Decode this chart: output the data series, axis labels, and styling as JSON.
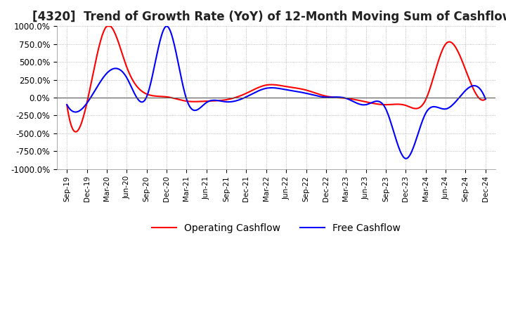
{
  "title": "[4320]  Trend of Growth Rate (YoY) of 12-Month Moving Sum of Cashflows",
  "title_fontsize": 12,
  "ylim": [
    -1000,
    1000
  ],
  "yticks": [
    -1000,
    -750,
    -500,
    -250,
    0,
    250,
    500,
    750,
    1000
  ],
  "ytick_labels": [
    "-1000.0%",
    "-750.0%",
    "-500.0%",
    "-250.0%",
    "0.0%",
    "250.0%",
    "500.0%",
    "750.0%",
    "1000.0%"
  ],
  "background_color": "#ffffff",
  "plot_bg_color": "#ffffff",
  "grid_color": "#aaaaaa",
  "operating_color": "#ff0000",
  "free_color": "#0000ff",
  "legend_labels": [
    "Operating Cashflow",
    "Free Cashflow"
  ],
  "x_labels": [
    "Sep-19",
    "Dec-19",
    "Mar-20",
    "Jun-20",
    "Sep-20",
    "Dec-20",
    "Mar-21",
    "Jun-21",
    "Sep-21",
    "Dec-21",
    "Mar-22",
    "Jun-22",
    "Sep-22",
    "Dec-22",
    "Mar-23",
    "Jun-23",
    "Sep-23",
    "Dec-23",
    "Mar-24",
    "Jun-24",
    "Sep-24",
    "Dec-24"
  ],
  "operating_cashflow": [
    -100,
    -80,
    1000,
    430,
    50,
    10,
    -50,
    -50,
    -30,
    60,
    175,
    155,
    105,
    20,
    -10,
    -60,
    -100,
    -110,
    -30,
    750,
    390,
    -20
  ],
  "free_cashflow": [
    -100,
    -80,
    340,
    280,
    10,
    1000,
    -20,
    -70,
    -60,
    10,
    130,
    110,
    60,
    5,
    -10,
    -100,
    -160,
    -855,
    -220,
    -160,
    100,
    -20
  ]
}
